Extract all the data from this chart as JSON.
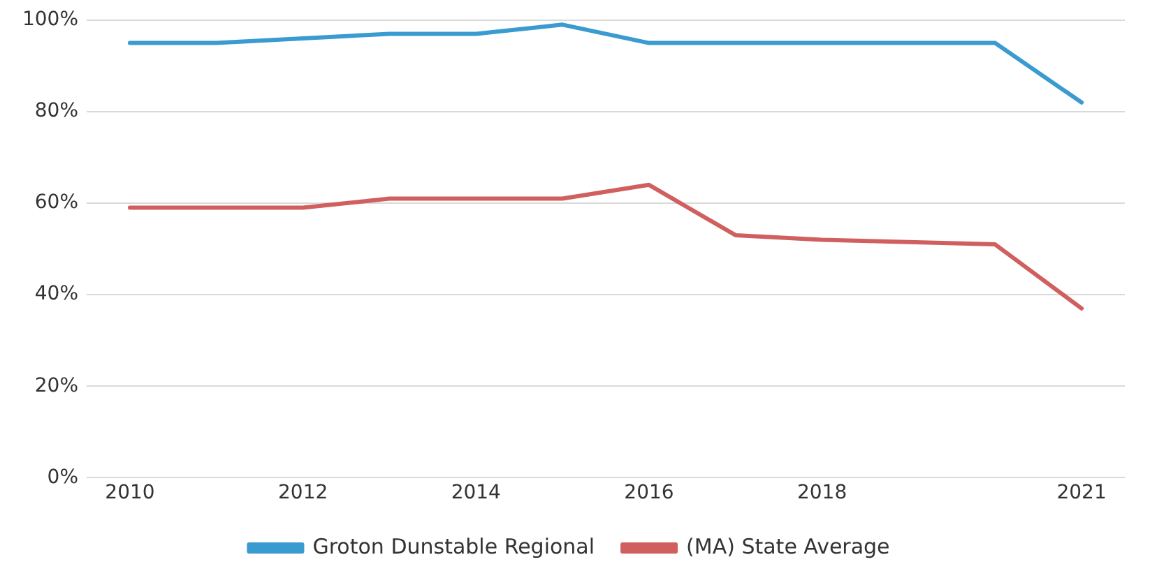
{
  "chart_data": {
    "type": "line",
    "x": [
      2010,
      2011,
      2012,
      2013,
      2014,
      2015,
      2016,
      2017,
      2018,
      2019,
      2020,
      2021
    ],
    "series": [
      {
        "name": "Groton Dunstable Regional",
        "color": "#3a9bd0",
        "values": [
          95,
          95,
          96,
          97,
          97,
          99,
          95,
          95,
          95,
          95,
          95,
          82
        ]
      },
      {
        "name": "(MA) State Average",
        "color": "#d0605f",
        "values": [
          59,
          59,
          59,
          61,
          61,
          61,
          64,
          53,
          52,
          51.5,
          51,
          37
        ]
      }
    ],
    "xlim": [
      2009.5,
      2021.5
    ],
    "xticks": [
      2010,
      2012,
      2014,
      2016,
      2018,
      2021
    ],
    "ylim": [
      0,
      100
    ],
    "yticks": [
      {
        "value": 0,
        "label": "0%"
      },
      {
        "value": 20,
        "label": "20%"
      },
      {
        "value": 40,
        "label": "40%"
      },
      {
        "value": 60,
        "label": "60%"
      },
      {
        "value": 80,
        "label": "80%"
      },
      {
        "value": 100,
        "label": "100%"
      }
    ],
    "grid": "y",
    "legend": "bottom",
    "marker": "none",
    "line_style": "solid"
  }
}
